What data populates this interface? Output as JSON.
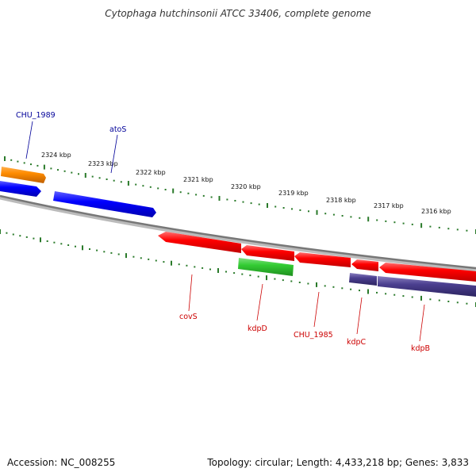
{
  "title": "Cytophaga hutchinsonii ATCC 33406, complete genome",
  "accession": "Accession: NC_008255",
  "summary": "Topology: circular; Length: 4,433,218 bp; Genes: 3,833",
  "colors": {
    "cds": "#ff0000",
    "other": "#0000ff",
    "orange": "#ff8c00",
    "green": "#33cc33",
    "purple": "#4b3f8f",
    "tick": "#2a7a2a",
    "backbone": "#888888",
    "label_red": "#cc0000",
    "label_blue": "#000099"
  },
  "scale": {
    "labels": [
      "2324 kbp",
      "2323 kbp",
      "2322 kbp",
      "2321 kbp",
      "2320 kbp",
      "2319 kbp",
      "2318 kbp",
      "2317 kbp",
      "2316 kbp"
    ]
  },
  "features": [
    {
      "name": "CHU_1989",
      "color": "orange",
      "strand": "outer",
      "direction": "right"
    },
    {
      "name": "",
      "color": "other",
      "strand": "inner",
      "direction": "right"
    },
    {
      "name": "atoS",
      "color": "other",
      "strand": "inner",
      "direction": "right"
    },
    {
      "name": "covS",
      "color": "cds",
      "strand": "lower",
      "direction": "left"
    },
    {
      "name": "",
      "color": "cds",
      "strand": "lower",
      "direction": "left"
    },
    {
      "name": "CHU_1985",
      "color": "cds",
      "strand": "lower",
      "direction": "left"
    },
    {
      "name": "kdpC",
      "color": "cds",
      "strand": "lower",
      "direction": "left"
    },
    {
      "name": "kdpB",
      "color": "cds",
      "strand": "lower",
      "direction": "left"
    },
    {
      "name": "kdpD",
      "color": "green",
      "strand": "lower2",
      "direction": "none"
    },
    {
      "name": "",
      "color": "purple",
      "strand": "lower2",
      "direction": "none"
    }
  ],
  "labels": [
    {
      "text": "CHU_1989",
      "color": "label_blue"
    },
    {
      "text": "atoS",
      "color": "label_blue"
    },
    {
      "text": "covS",
      "color": "label_red"
    },
    {
      "text": "kdpD",
      "color": "label_red"
    },
    {
      "text": "CHU_1985",
      "color": "label_red"
    },
    {
      "text": "kdpC",
      "color": "label_red"
    },
    {
      "text": "kdpB",
      "color": "label_red"
    }
  ]
}
